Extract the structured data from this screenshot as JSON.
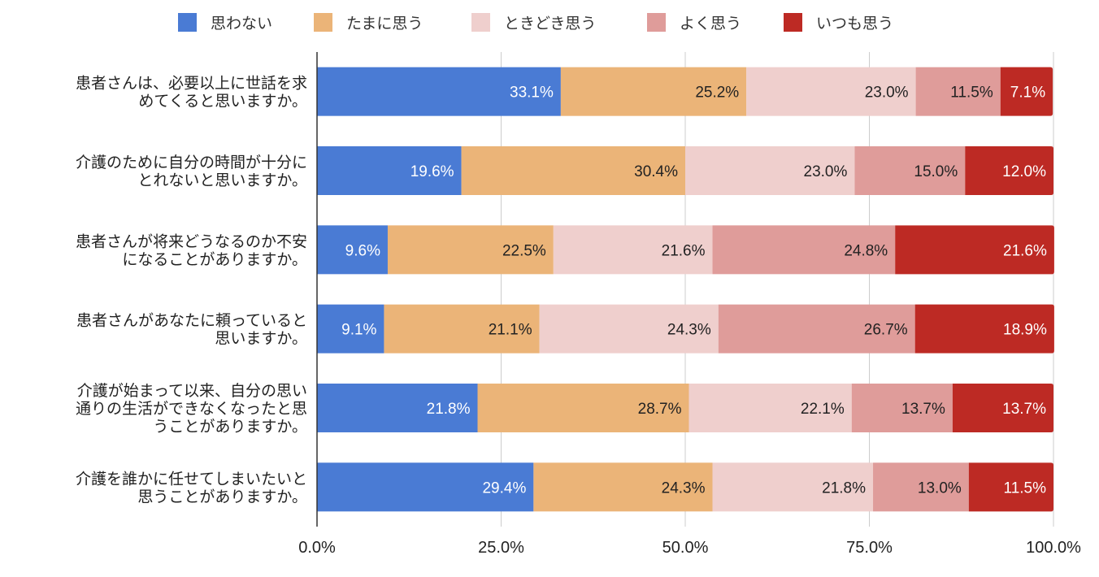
{
  "chart_data": {
    "type": "bar",
    "orientation": "horizontal",
    "stacked": "percent",
    "categories": [
      "患者さんは、必要以上に世話を求めてくると思いますか。",
      "介護のために自分の時間が十分にとれないと思いますか。",
      "患者さんが将来どうなるのか不安になることがありますか。",
      "患者さんがあなたに頼っていると思いますか。",
      "介護が始まって以来、自分の思い通りの生活ができなくなったと思うことがありますか。",
      "介護を誰かに任せてしまいたいと思うことがありますか。"
    ],
    "category_lines": [
      [
        "患者さんは、必要以上に世話を求",
        "めてくると思いますか。"
      ],
      [
        "介護のために自分の時間が十分に",
        "とれないと思いますか。"
      ],
      [
        "患者さんが将来どうなるのか不安",
        "になることがありますか。"
      ],
      [
        "患者さんがあなたに頼っていると",
        "思いますか。"
      ],
      [
        "介護が始まって以来、自分の思い",
        "通りの生活ができなくなったと思",
        "うことがありますか。"
      ],
      [
        "介護を誰かに任せてしまいたいと",
        "思うことがありますか。"
      ]
    ],
    "series": [
      {
        "name": "思わない",
        "color": "#4A7BD4",
        "label_color": "#ffffff",
        "values": [
          33.1,
          19.6,
          9.6,
          9.1,
          21.8,
          29.4
        ]
      },
      {
        "name": "たまに思う",
        "color": "#EBB478",
        "label_color": "#222222",
        "values": [
          25.2,
          30.4,
          22.5,
          21.1,
          28.7,
          24.3
        ]
      },
      {
        "name": "ときどき思う",
        "color": "#EFCFCD",
        "label_color": "#222222",
        "values": [
          23.0,
          23.0,
          21.6,
          24.3,
          22.1,
          21.8
        ]
      },
      {
        "name": "よく思う",
        "color": "#DF9C9A",
        "label_color": "#222222",
        "values": [
          11.5,
          15.0,
          24.8,
          26.7,
          13.7,
          13.0
        ]
      },
      {
        "name": "いつも思う",
        "color": "#BD2A24",
        "label_color": "#ffffff",
        "values": [
          7.1,
          12.0,
          21.6,
          18.9,
          13.7,
          11.5
        ]
      }
    ],
    "x_ticks": [
      "0.0%",
      "25.0%",
      "50.0%",
      "75.0%",
      "100.0%"
    ],
    "xlim": [
      0,
      100
    ],
    "title": "",
    "xlabel": "",
    "ylabel": "",
    "grid": true,
    "legend_position": "top"
  }
}
